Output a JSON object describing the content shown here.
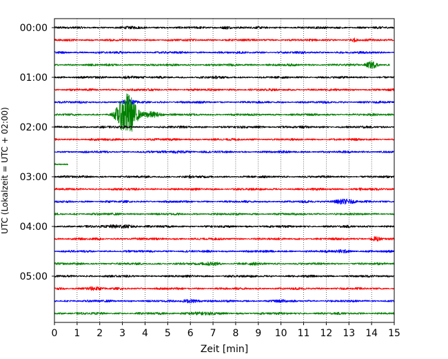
{
  "chart_data": {
    "type": "line",
    "title": "",
    "xlabel": "Zeit  [min]",
    "ylabel": "UTC (Lokalzeit = UTC + 02:00)",
    "xlim": [
      0,
      15
    ],
    "x_ticks": [
      0,
      1,
      2,
      3,
      4,
      5,
      6,
      7,
      8,
      9,
      10,
      11,
      12,
      13,
      14,
      15
    ],
    "y_tick_labels": [
      "00:00",
      "01:00",
      "02:00",
      "03:00",
      "04:00",
      "05:00"
    ],
    "y_tick_rows": [
      0,
      4,
      8,
      12,
      16,
      20
    ],
    "row_interval_min": 15,
    "grid": {
      "vertical_minutes": true,
      "style": "dotted"
    },
    "color_cycle": [
      "#000000",
      "#ff0000",
      "#0000ff",
      "#008000"
    ],
    "series": [
      {
        "start": "00:00",
        "trace_end_min": 15,
        "events": [
          {
            "t": 3.4,
            "amp": 2.2,
            "dur": 2.2
          },
          {
            "t": 7.6,
            "amp": 2.6,
            "dur": 0.7
          }
        ]
      },
      {
        "start": "00:15",
        "trace_end_min": 15,
        "events": [
          {
            "t": 13.2,
            "amp": 3.5,
            "dur": 0.5
          }
        ]
      },
      {
        "start": "00:30",
        "trace_end_min": 15,
        "events": [
          {
            "t": 14.0,
            "amp": 2.0,
            "dur": 0.6
          }
        ]
      },
      {
        "start": "00:45",
        "trace_end_min": 14.8,
        "events": [
          {
            "t": 14.0,
            "amp": 5.5,
            "dur": 0.8
          }
        ]
      },
      {
        "start": "01:00",
        "trace_end_min": 15,
        "events": [
          {
            "t": 3.3,
            "amp": 2.6,
            "dur": 1.0
          },
          {
            "t": 7.1,
            "amp": 2.3,
            "dur": 0.8
          }
        ]
      },
      {
        "start": "01:15",
        "trace_end_min": 15,
        "events": []
      },
      {
        "start": "01:30",
        "trace_end_min": 15,
        "events": [
          {
            "t": 3.3,
            "amp": 4.0,
            "dur": 1.2
          }
        ]
      },
      {
        "start": "01:45",
        "trace_end_min": 15,
        "events": [
          {
            "t": 3.2,
            "amp": 32.0,
            "dur": 1.1
          },
          {
            "t": 4.2,
            "amp": 5.0,
            "dur": 1.5
          }
        ]
      },
      {
        "start": "02:00",
        "trace_end_min": 15,
        "events": [
          {
            "t": 9.0,
            "amp": 1.8,
            "dur": 1.2
          }
        ]
      },
      {
        "start": "02:15",
        "trace_end_min": 15,
        "events": []
      },
      {
        "start": "02:30",
        "trace_end_min": 15,
        "events": [
          {
            "t": 5.5,
            "amp": 2.2,
            "dur": 2.0
          }
        ]
      },
      {
        "start": "02:45",
        "trace_end_min": 0.6,
        "events": []
      },
      {
        "start": "03:00",
        "trace_end_min": 15,
        "events": [
          {
            "t": 6.0,
            "amp": 2.8,
            "dur": 0.3
          }
        ]
      },
      {
        "start": "03:15",
        "trace_end_min": 15,
        "events": [
          {
            "t": 13.5,
            "amp": 3.0,
            "dur": 0.2
          }
        ]
      },
      {
        "start": "03:30",
        "trace_end_min": 15,
        "events": [
          {
            "t": 12.8,
            "amp": 4.0,
            "dur": 1.5
          }
        ]
      },
      {
        "start": "03:45",
        "trace_end_min": 15,
        "events": []
      },
      {
        "start": "04:00",
        "trace_end_min": 15,
        "events": [
          {
            "t": 2.9,
            "amp": 3.0,
            "dur": 2.4
          }
        ]
      },
      {
        "start": "04:15",
        "trace_end_min": 15,
        "events": [
          {
            "t": 14.2,
            "amp": 3.8,
            "dur": 0.8
          }
        ]
      },
      {
        "start": "04:30",
        "trace_end_min": 15,
        "events": [
          {
            "t": 12.7,
            "amp": 3.0,
            "dur": 1.2
          }
        ]
      },
      {
        "start": "04:45",
        "trace_end_min": 15,
        "events": [
          {
            "t": 6.9,
            "amp": 3.2,
            "dur": 1.4
          },
          {
            "t": 8.8,
            "amp": 2.4,
            "dur": 1.4
          }
        ]
      },
      {
        "start": "05:00",
        "trace_end_min": 15,
        "events": []
      },
      {
        "start": "05:15",
        "trace_end_min": 15,
        "events": [
          {
            "t": 1.7,
            "amp": 3.2,
            "dur": 1.4
          }
        ]
      },
      {
        "start": "05:30",
        "trace_end_min": 15,
        "events": [
          {
            "t": 6.0,
            "amp": 3.0,
            "dur": 1.4
          },
          {
            "t": 10.0,
            "amp": 2.6,
            "dur": 1.2
          }
        ]
      },
      {
        "start": "05:45",
        "trace_end_min": 15,
        "events": [
          {
            "t": 6.5,
            "amp": 2.6,
            "dur": 3.0
          }
        ]
      }
    ]
  }
}
